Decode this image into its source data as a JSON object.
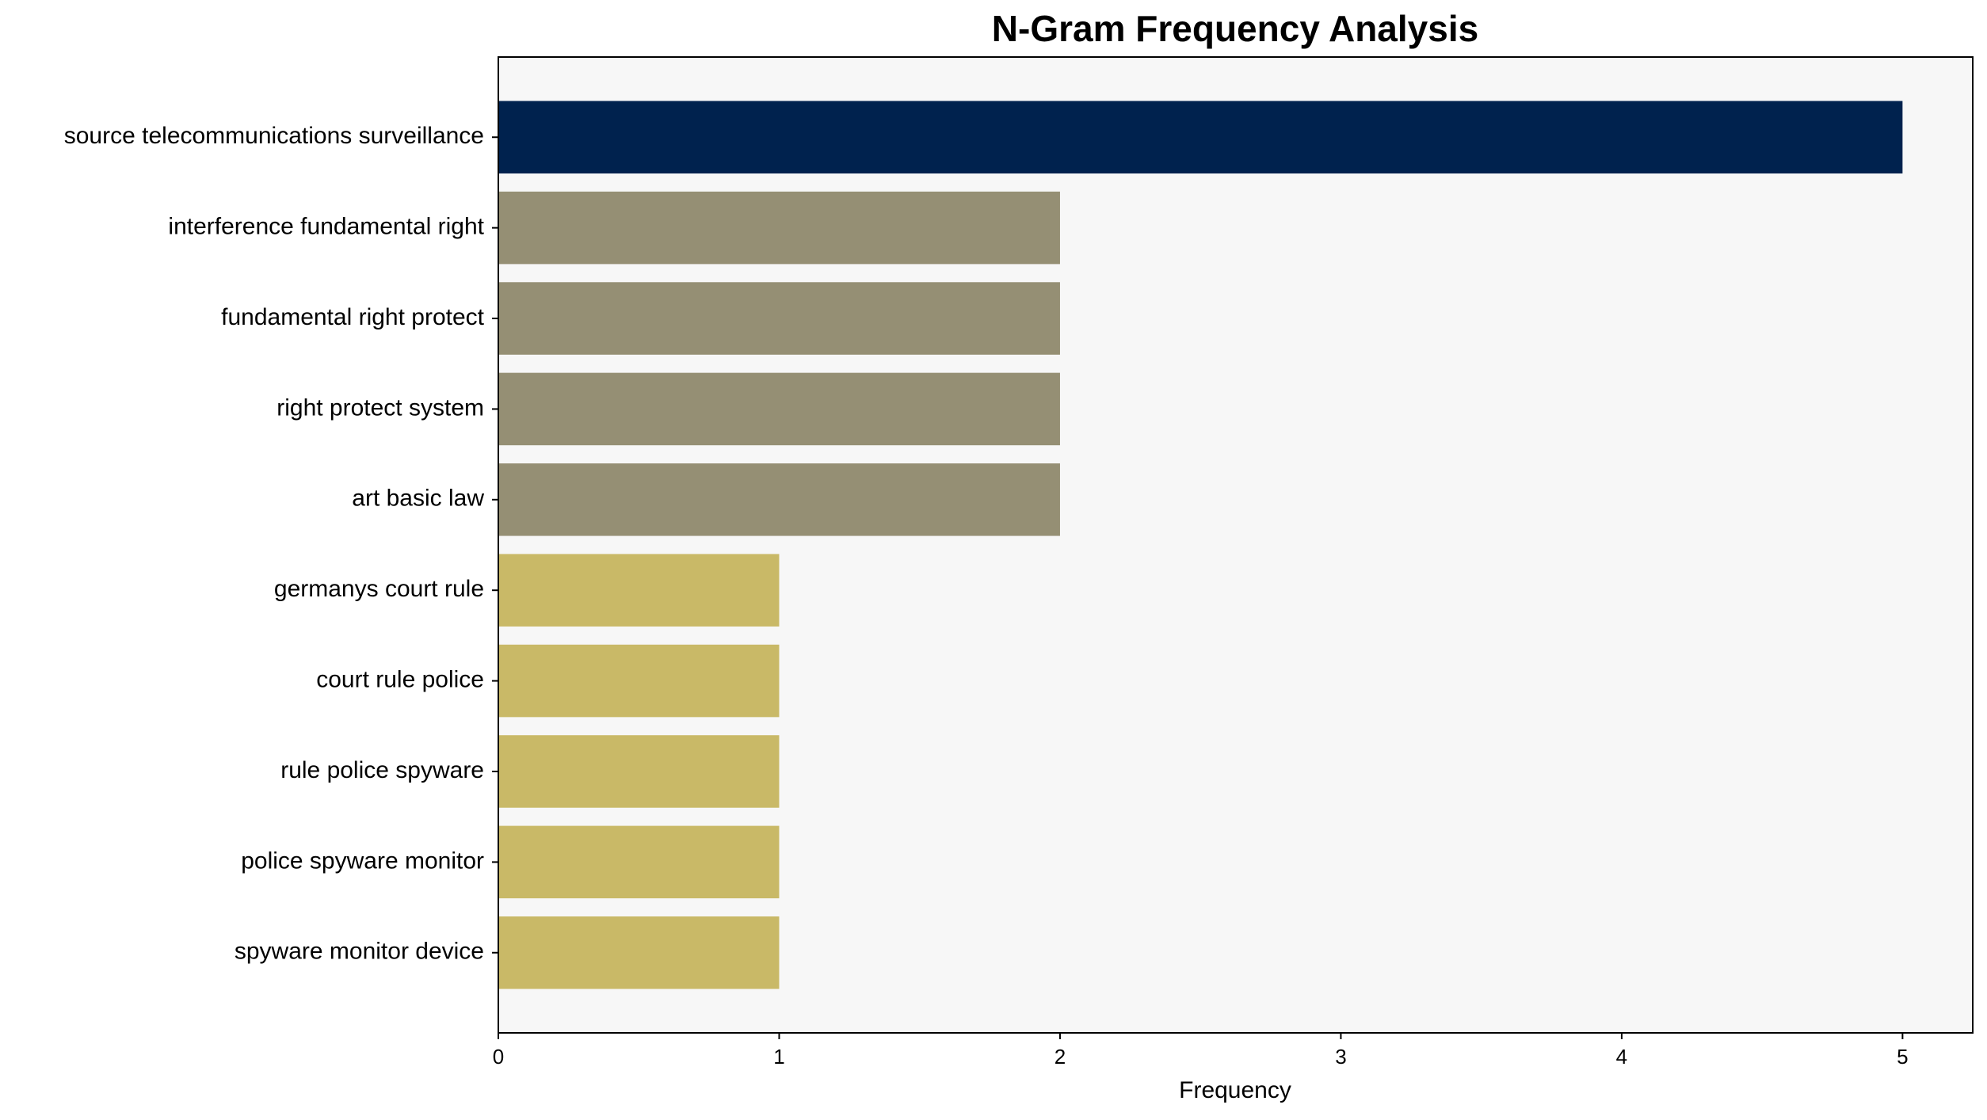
{
  "chart_data": {
    "type": "barh",
    "title": "N-Gram Frequency Analysis",
    "x_label": "Frequency",
    "categories": [
      "source telecommunications surveillance",
      "interference fundamental right",
      "fundamental right protect",
      "right protect system",
      "art basic law",
      "germanys court rule",
      "court rule police",
      "rule police spyware",
      "police spyware monitor",
      "spyware monitor device"
    ],
    "values": [
      5,
      2,
      2,
      2,
      2,
      1,
      1,
      1,
      1,
      1
    ],
    "colors": [
      "#00224e",
      "#958f74",
      "#958f74",
      "#958f74",
      "#958f74",
      "#c9b967",
      "#c9b967",
      "#c9b967",
      "#c9b967",
      "#c9b967"
    ],
    "xlim": [
      0,
      5.25
    ],
    "xticks": [
      0,
      1,
      2,
      3,
      4,
      5
    ],
    "grid": false
  }
}
